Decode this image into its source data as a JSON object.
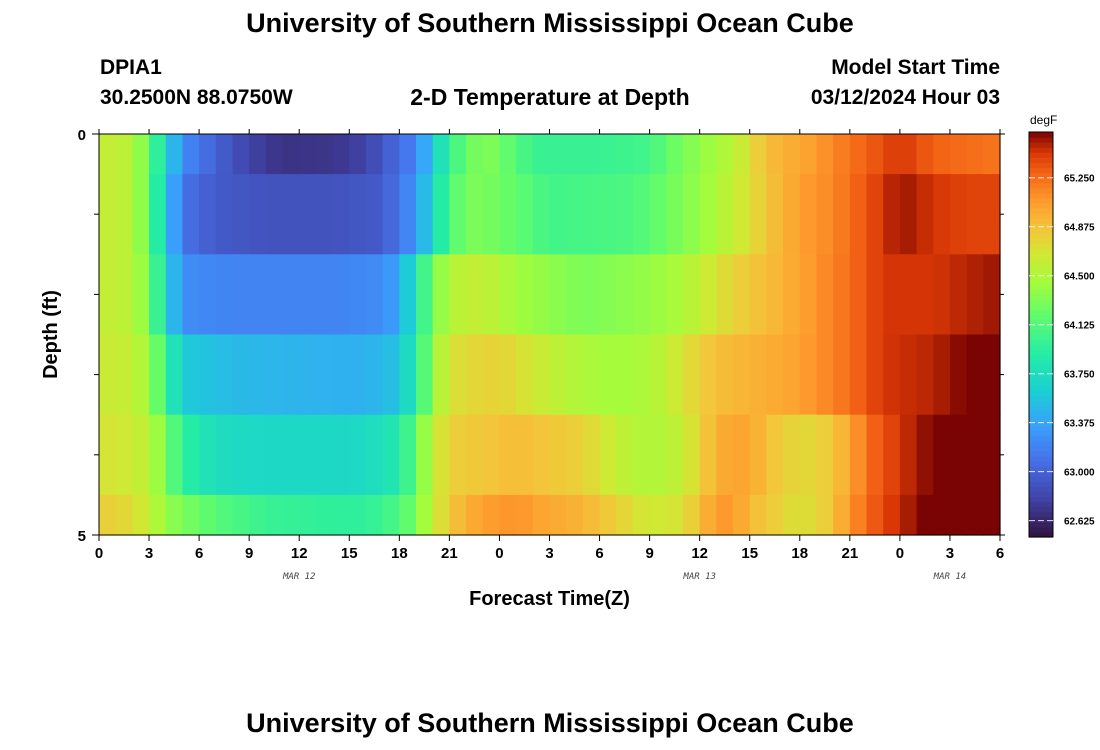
{
  "header": {
    "title": "University of Southern Mississippi Ocean Cube",
    "station": "DPIA1",
    "coords": "30.2500N  88.0750W",
    "subtitle": "2-D Temperature at Depth",
    "start_label": "Model Start Time",
    "start_time": "03/12/2024 Hour 03",
    "footer_title": "University of Southern Mississippi Ocean Cube"
  },
  "chart_data": {
    "type": "heatmap",
    "title": "2-D Temperature at Depth",
    "xlabel": "Forecast Time(Z)",
    "ylabel": "Depth (ft)",
    "x_start_hour": 0,
    "x_end_hour": 54,
    "x_step_hours": 1,
    "x_tick_labels": [
      "0",
      "3",
      "6",
      "9",
      "12",
      "15",
      "18",
      "21",
      "0",
      "3",
      "6",
      "9",
      "12",
      "15",
      "18",
      "21",
      "0",
      "3",
      "6"
    ],
    "x_tick_hours": [
      0,
      3,
      6,
      9,
      12,
      15,
      18,
      21,
      24,
      27,
      30,
      33,
      36,
      39,
      42,
      45,
      48,
      51,
      54
    ],
    "date_labels": [
      {
        "text": "MAR 12",
        "hour": 12
      },
      {
        "text": "MAR 13",
        "hour": 36
      },
      {
        "text": "MAR 14",
        "hour": 51
      }
    ],
    "y_range": [
      0,
      5
    ],
    "y_tick_labels": [
      "0",
      "5"
    ],
    "y_minor_ticks": [
      1,
      2,
      3,
      4
    ],
    "depth_bands": [
      {
        "top": 0,
        "bottom": 0.5
      },
      {
        "top": 0.5,
        "bottom": 1.5
      },
      {
        "top": 1.5,
        "bottom": 2.5
      },
      {
        "top": 2.5,
        "bottom": 3.5
      },
      {
        "top": 3.5,
        "bottom": 4.5
      },
      {
        "top": 4.5,
        "bottom": 5
      }
    ],
    "band_anchors": [
      [
        [
          0,
          64.62
        ],
        [
          2,
          64.55
        ],
        [
          3,
          64.2
        ],
        [
          4,
          63.7
        ],
        [
          5,
          63.25
        ],
        [
          7,
          63.0
        ],
        [
          9,
          62.8
        ],
        [
          11,
          62.7
        ],
        [
          14,
          62.72
        ],
        [
          16,
          62.8
        ],
        [
          19,
          63.2
        ],
        [
          20,
          63.6
        ],
        [
          21,
          64.0
        ],
        [
          22,
          64.2
        ],
        [
          23,
          64.35
        ],
        [
          25,
          64.15
        ],
        [
          26,
          64.0
        ],
        [
          30,
          64.0
        ],
        [
          33,
          64.05
        ],
        [
          34,
          64.2
        ],
        [
          36,
          64.38
        ],
        [
          38,
          64.55
        ],
        [
          40,
          64.9
        ],
        [
          42,
          65.0
        ],
        [
          44,
          65.15
        ],
        [
          46,
          65.3
        ],
        [
          48,
          65.45
        ],
        [
          50,
          65.3
        ],
        [
          52,
          65.25
        ],
        [
          54,
          65.22
        ]
      ],
      [
        [
          0,
          64.62
        ],
        [
          2,
          64.55
        ],
        [
          3,
          64.2
        ],
        [
          4,
          63.6
        ],
        [
          5,
          63.1
        ],
        [
          7,
          62.95
        ],
        [
          10,
          62.9
        ],
        [
          14,
          62.9
        ],
        [
          17,
          62.95
        ],
        [
          19,
          63.3
        ],
        [
          20,
          63.7
        ],
        [
          21,
          64.1
        ],
        [
          22,
          64.3
        ],
        [
          23,
          64.3
        ],
        [
          25,
          64.2
        ],
        [
          27,
          64.05
        ],
        [
          32,
          64.1
        ],
        [
          34,
          64.25
        ],
        [
          36,
          64.4
        ],
        [
          38,
          64.6
        ],
        [
          40,
          64.85
        ],
        [
          42,
          65.05
        ],
        [
          44,
          65.15
        ],
        [
          46,
          65.35
        ],
        [
          48,
          65.55
        ],
        [
          50,
          65.45
        ],
        [
          52,
          65.4
        ],
        [
          54,
          65.4
        ]
      ],
      [
        [
          0,
          64.62
        ],
        [
          2,
          64.55
        ],
        [
          3,
          64.3
        ],
        [
          4,
          63.7
        ],
        [
          5,
          63.25
        ],
        [
          8,
          63.2
        ],
        [
          14,
          63.2
        ],
        [
          17,
          63.25
        ],
        [
          18,
          63.4
        ],
        [
          19,
          63.8
        ],
        [
          20,
          64.3
        ],
        [
          21,
          64.5
        ],
        [
          22,
          64.6
        ],
        [
          23,
          64.6
        ],
        [
          25,
          64.45
        ],
        [
          29,
          64.3
        ],
        [
          31,
          64.35
        ],
        [
          33,
          64.4
        ],
        [
          35,
          64.5
        ],
        [
          37,
          64.7
        ],
        [
          39,
          64.85
        ],
        [
          41,
          64.95
        ],
        [
          43,
          65.1
        ],
        [
          45,
          65.25
        ],
        [
          47,
          65.45
        ],
        [
          50,
          65.45
        ],
        [
          52,
          65.5
        ],
        [
          54,
          65.55
        ]
      ],
      [
        [
          0,
          64.65
        ],
        [
          2,
          64.6
        ],
        [
          3,
          64.45
        ],
        [
          4,
          64.0
        ],
        [
          5,
          63.6
        ],
        [
          8,
          63.5
        ],
        [
          14,
          63.45
        ],
        [
          16,
          63.45
        ],
        [
          18,
          63.55
        ],
        [
          19,
          63.9
        ],
        [
          20,
          64.4
        ],
        [
          21,
          64.7
        ],
        [
          22,
          64.75
        ],
        [
          24,
          64.8
        ],
        [
          27,
          64.6
        ],
        [
          29,
          64.5
        ],
        [
          31,
          64.45
        ],
        [
          33,
          64.5
        ],
        [
          35,
          64.7
        ],
        [
          37,
          64.9
        ],
        [
          39,
          64.95
        ],
        [
          41,
          65.0
        ],
        [
          43,
          65.1
        ],
        [
          45,
          65.25
        ],
        [
          47,
          65.45
        ],
        [
          50,
          65.5
        ],
        [
          52,
          65.6
        ],
        [
          54,
          65.7
        ]
      ],
      [
        [
          0,
          64.7
        ],
        [
          2,
          64.65
        ],
        [
          3,
          64.55
        ],
        [
          4,
          64.3
        ],
        [
          5,
          63.95
        ],
        [
          7,
          63.75
        ],
        [
          10,
          63.7
        ],
        [
          14,
          63.7
        ],
        [
          16,
          63.72
        ],
        [
          18,
          63.85
        ],
        [
          19,
          64.2
        ],
        [
          20,
          64.6
        ],
        [
          21,
          64.8
        ],
        [
          23,
          64.85
        ],
        [
          25,
          64.9
        ],
        [
          27,
          64.85
        ],
        [
          29,
          64.8
        ],
        [
          31,
          64.6
        ],
        [
          33,
          64.5
        ],
        [
          35,
          64.6
        ],
        [
          36,
          64.8
        ],
        [
          37,
          64.95
        ],
        [
          38,
          65.05
        ],
        [
          39,
          65.0
        ],
        [
          41,
          64.8
        ],
        [
          43,
          64.75
        ],
        [
          45,
          65.0
        ],
        [
          46,
          65.25
        ],
        [
          48,
          65.45
        ],
        [
          50,
          65.6
        ],
        [
          52,
          65.75
        ],
        [
          54,
          65.85
        ]
      ],
      [
        [
          0,
          64.82
        ],
        [
          2,
          64.75
        ],
        [
          3,
          64.6
        ],
        [
          4,
          64.4
        ],
        [
          5,
          64.3
        ],
        [
          7,
          64.15
        ],
        [
          10,
          64.0
        ],
        [
          14,
          63.95
        ],
        [
          16,
          63.95
        ],
        [
          18,
          64.1
        ],
        [
          19,
          64.3
        ],
        [
          20,
          64.6
        ],
        [
          21,
          64.85
        ],
        [
          22,
          64.95
        ],
        [
          23,
          65.05
        ],
        [
          25,
          65.1
        ],
        [
          27,
          65.0
        ],
        [
          29,
          64.95
        ],
        [
          31,
          64.8
        ],
        [
          33,
          64.65
        ],
        [
          35,
          64.7
        ],
        [
          36,
          64.9
        ],
        [
          37,
          65.05
        ],
        [
          38,
          65.1
        ],
        [
          39,
          64.9
        ],
        [
          40,
          64.85
        ],
        [
          42,
          64.7
        ],
        [
          44,
          64.85
        ],
        [
          45,
          65.1
        ],
        [
          47,
          65.4
        ],
        [
          50,
          65.65
        ],
        [
          52,
          65.8
        ],
        [
          54,
          65.9
        ]
      ]
    ],
    "colorbar": {
      "unit": "degF",
      "min": 62.5,
      "max": 65.6,
      "tick_labels": [
        "65.250",
        "64.875",
        "64.500",
        "64.125",
        "63.750",
        "63.375",
        "63.000",
        "62.625"
      ],
      "tick_values": [
        65.25,
        64.875,
        64.5,
        64.125,
        63.75,
        63.375,
        63.0,
        62.625
      ]
    }
  }
}
